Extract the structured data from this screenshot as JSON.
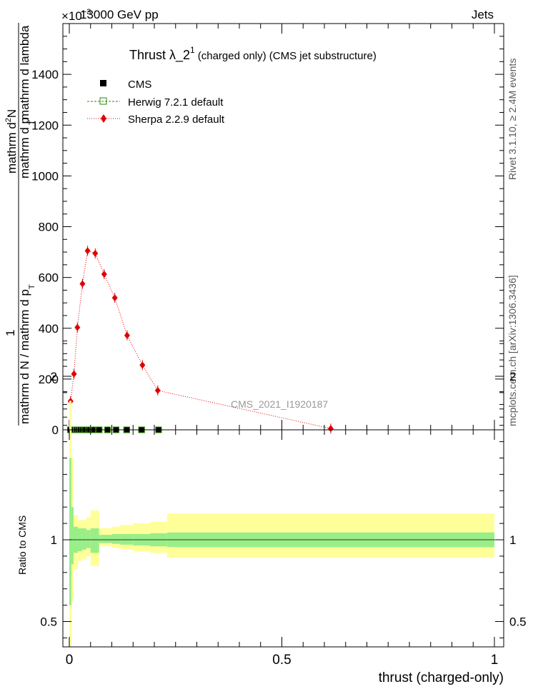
{
  "header": {
    "energy_label": "13000 GeV pp",
    "category_label": "Jets",
    "exponent_label": "×10",
    "exponent_power": "−3"
  },
  "side_labels": {
    "rivet": "Rivet 3.1.10, ≥ 2.4M events",
    "mcplots": "mcplots.cern.ch [arXiv:1306.3436]"
  },
  "watermark": "CMS_2021_I1920187",
  "chart_data": [
    {
      "type": "line",
      "title_main": "Thrust λ_2",
      "title_sup": "1",
      "title_suffix": "(charged only) (CMS jet substructure)",
      "ylabel_numerator_1": "mathrm d",
      "ylabel_numerator_sup": "2",
      "ylabel_numerator_2": "N",
      "ylabel_den_lines": [
        "mathrm d p",
        "T",
        "mathrm d lambda"
      ],
      "ylabel_frac_one": "1",
      "ylabel_frac_den": "mathrm d N / mathrm d p",
      "ylabel_frac_den_sub": "T",
      "xlim": [
        0,
        1
      ],
      "ylim": [
        0,
        1600
      ],
      "y_ticks": [
        0,
        200,
        400,
        600,
        800,
        1000,
        1200,
        1400
      ],
      "y_tick_labels": [
        "0",
        "200",
        "400",
        "600",
        "800",
        "1000",
        "1200",
        "1400"
      ],
      "legend": {
        "position": "top-left",
        "entries": [
          "CMS",
          "Herwig 7.2.1 default",
          "Sherpa 2.2.9 default"
        ]
      },
      "series": [
        {
          "name": "CMS",
          "color": "#000000",
          "marker": "square",
          "x": [
            0.0025,
            0.0075,
            0.0125,
            0.0175,
            0.025,
            0.035,
            0.045,
            0.055,
            0.07,
            0.09,
            0.11,
            0.135,
            0.17,
            0.21
          ],
          "y": [
            0,
            0,
            0,
            0,
            0,
            0,
            0,
            0,
            0,
            0,
            0,
            0,
            0,
            0
          ]
        },
        {
          "name": "Herwig 7.2.1 default",
          "color": "#2a8a00",
          "marker": "open-square",
          "x": [
            0.0025,
            0.0075,
            0.0125,
            0.0175,
            0.025,
            0.035,
            0.045,
            0.055,
            0.07,
            0.09,
            0.11,
            0.135,
            0.17,
            0.21
          ],
          "y": [
            0,
            0,
            0,
            0,
            0,
            0,
            0,
            0,
            0,
            0,
            0,
            0,
            0,
            0
          ]
        },
        {
          "name": "Sherpa 2.2.9 default",
          "color": "#e00000",
          "marker": "diamond",
          "x": [
            0.003,
            0.011,
            0.019,
            0.031,
            0.043,
            0.061,
            0.082,
            0.107,
            0.136,
            0.172,
            0.208,
            0.615
          ],
          "y": [
            113,
            220,
            403,
            575,
            705,
            695,
            613,
            520,
            372,
            255,
            155,
            5
          ]
        }
      ]
    },
    {
      "type": "area",
      "ylabel": "Ratio to CMS",
      "xlabel": "thrust (charged-only)",
      "xlim": [
        0,
        1
      ],
      "ylim": [
        0.35,
        2.3
      ],
      "x_ticks": [
        0,
        0.5,
        1
      ],
      "x_tick_labels": [
        "0",
        "0.5",
        "1"
      ],
      "y_ticks": [
        0.5,
        1,
        2
      ],
      "y_tick_labels": [
        "0.5",
        "1",
        "2"
      ],
      "bands": [
        {
          "name": "total uncertainty",
          "color": "#ffff99",
          "edges": [
            0,
            0.005,
            0.01,
            0.02,
            0.03,
            0.04,
            0.05,
            0.07,
            0.1,
            0.12,
            0.15,
            0.19,
            0.23,
            1.0
          ],
          "lo": [
            0.35,
            0.62,
            0.82,
            0.87,
            0.88,
            0.9,
            0.84,
            0.96,
            0.95,
            0.94,
            0.93,
            0.92,
            0.89
          ],
          "hi": [
            1.85,
            1.5,
            1.15,
            1.12,
            1.12,
            1.14,
            1.18,
            1.07,
            1.08,
            1.09,
            1.1,
            1.11,
            1.16
          ]
        },
        {
          "name": "statistical uncertainty",
          "color": "#99ee88",
          "edges": [
            0,
            0.005,
            0.01,
            0.02,
            0.03,
            0.04,
            0.05,
            0.07,
            0.1,
            0.12,
            0.15,
            0.19,
            0.23,
            1.0
          ],
          "lo": [
            0.6,
            0.85,
            0.92,
            0.93,
            0.94,
            0.95,
            0.92,
            0.98,
            0.975,
            0.97,
            0.965,
            0.96,
            0.955
          ],
          "hi": [
            1.5,
            1.2,
            1.08,
            1.07,
            1.07,
            1.06,
            1.07,
            1.03,
            1.035,
            1.035,
            1.035,
            1.04,
            1.045
          ]
        }
      ]
    }
  ]
}
